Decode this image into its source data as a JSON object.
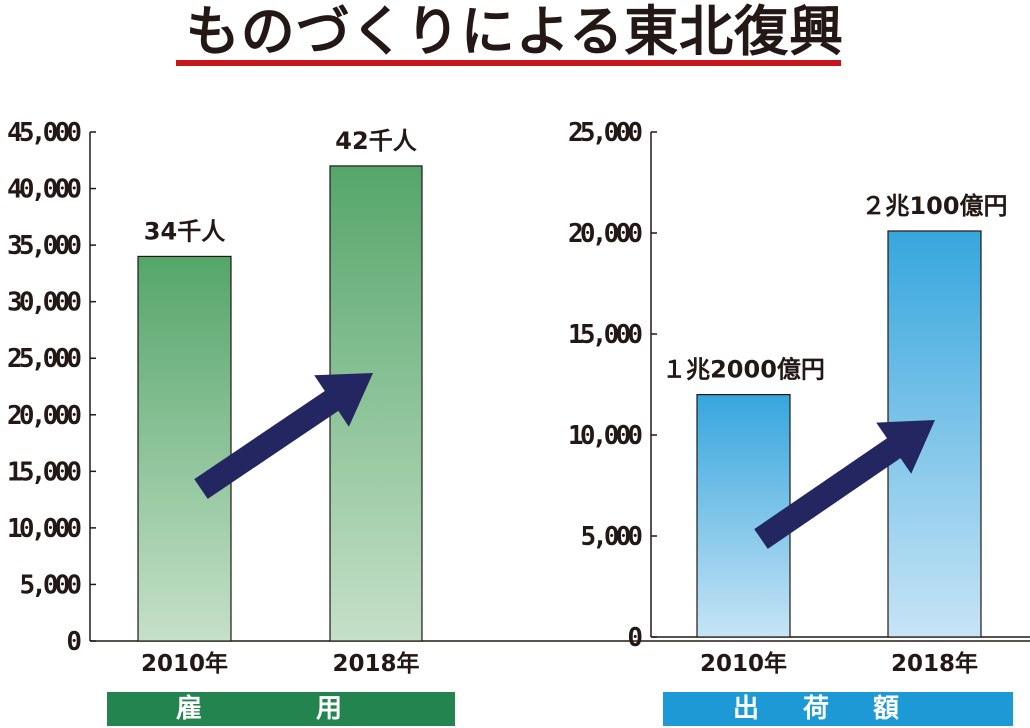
{
  "title": "ものづくりによる東北復興",
  "colors": {
    "title_rule": "#c8161d",
    "employment_bar_top": "#55a66a",
    "employment_bar_bottom": "#c5e0c8",
    "shipment_bar_top": "#36a6dd",
    "shipment_bar_bottom": "#c7e4f6",
    "arrow": "#232660",
    "employment_banner": "#23844f",
    "shipment_banner": "#1d9ad6"
  },
  "chart_data": [
    {
      "type": "bar",
      "categories": [
        "2010年",
        "2018年"
      ],
      "values": [
        34000,
        42000
      ],
      "data_labels": [
        "34千人",
        "42千人"
      ],
      "yticks": [
        "0",
        "5,000",
        "10,000",
        "15,000",
        "20,000",
        "25,000",
        "30,000",
        "35,000",
        "40,000",
        "45,000"
      ],
      "ylim": [
        0,
        45000
      ],
      "label": "雇　用",
      "annotation": "trend-up-arrow"
    },
    {
      "type": "bar",
      "categories": [
        "2010年",
        "2018年"
      ],
      "values": [
        12000,
        20100
      ],
      "data_labels": [
        "１兆2000億円",
        "２兆100億円"
      ],
      "yticks": [
        "0",
        "5,000",
        "10,000",
        "15,000",
        "20,000",
        "25,000"
      ],
      "ylim": [
        0,
        25000
      ],
      "label": "出荷額",
      "annotation": "trend-up-arrow"
    }
  ]
}
